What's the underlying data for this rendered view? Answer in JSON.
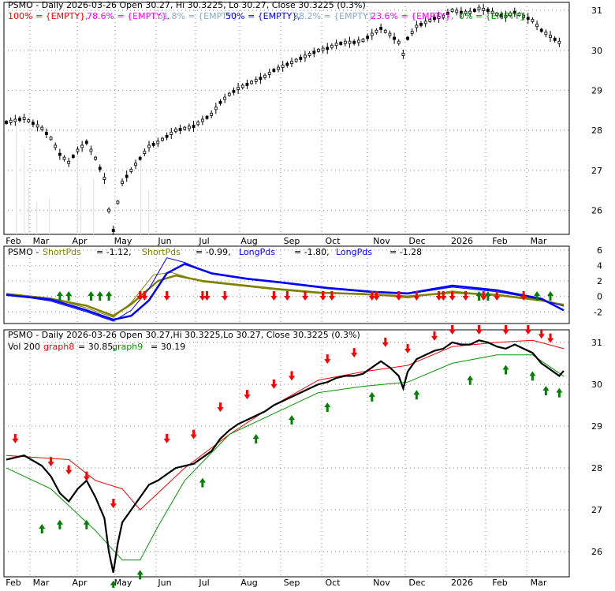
{
  "chart_data": [
    {
      "type": "candlestick",
      "panel": "price",
      "title": "PSMO - Daily 2026-03-26 Open 30.27, Hi 30.3225, Lo 30.27, Close 30.3225 (0.3%)",
      "fib_legend": [
        {
          "text": "100% = {EMPTY},",
          "color": "#ff0000"
        },
        {
          "text": "78.6% = {EMPTY},",
          "color": "#ff00ff"
        },
        {
          "text": "61.8% = {EMPTY},",
          "color": "#87a9c8"
        },
        {
          "text": "50% = {EMPTY},",
          "color": "#0000ff"
        },
        {
          "text": "38.2% = {EMPTY},",
          "color": "#87a9c8"
        },
        {
          "text": "23.6% = {EMPTY},",
          "color": "#ff00ff"
        },
        {
          "text": "0% = {EMPTY}",
          "color": "#009900"
        }
      ],
      "x_ticks": [
        "Feb",
        "Mar",
        "Apr",
        "May",
        "Jun",
        "Jul",
        "Aug",
        "Sep",
        "Oct",
        "Nov",
        "Dec",
        "2026",
        "Feb",
        "Mar"
      ],
      "y_ticks": [
        26,
        27,
        28,
        29,
        30,
        31
      ],
      "ylim": [
        25.4,
        31.2
      ],
      "series": [
        {
          "name": "PSMO",
          "points": [
            [
              0,
              28.2
            ],
            [
              4,
              28.3
            ],
            [
              8,
              28.05
            ],
            [
              10,
              27.8
            ],
            [
              12,
              27.4
            ],
            [
              14,
              27.2
            ],
            [
              16,
              27.5
            ],
            [
              18,
              27.7
            ],
            [
              20,
              27.3
            ],
            [
              22,
              26.8
            ],
            [
              23,
              26.0
            ],
            [
              24,
              25.5
            ],
            [
              25,
              26.2
            ],
            [
              26,
              26.7
            ],
            [
              28,
              27.0
            ],
            [
              30,
              27.3
            ],
            [
              32,
              27.6
            ],
            [
              34,
              27.7
            ],
            [
              36,
              27.85
            ],
            [
              38,
              28.0
            ],
            [
              40,
              28.05
            ],
            [
              42,
              28.1
            ],
            [
              44,
              28.25
            ],
            [
              46,
              28.4
            ],
            [
              48,
              28.7
            ],
            [
              50,
              28.9
            ],
            [
              52,
              29.05
            ],
            [
              54,
              29.15
            ],
            [
              56,
              29.25
            ],
            [
              58,
              29.35
            ],
            [
              60,
              29.5
            ],
            [
              62,
              29.6
            ],
            [
              64,
              29.7
            ],
            [
              66,
              29.8
            ],
            [
              68,
              29.9
            ],
            [
              70,
              30.0
            ],
            [
              72,
              30.05
            ],
            [
              74,
              30.15
            ],
            [
              76,
              30.2
            ],
            [
              78,
              30.2
            ],
            [
              80,
              30.25
            ],
            [
              82,
              30.4
            ],
            [
              84,
              30.55
            ],
            [
              86,
              30.4
            ],
            [
              88,
              30.2
            ],
            [
              89,
              29.9
            ],
            [
              90,
              30.3
            ],
            [
              92,
              30.6
            ],
            [
              94,
              30.7
            ],
            [
              96,
              30.8
            ],
            [
              98,
              30.85
            ],
            [
              100,
              31.0
            ],
            [
              102,
              30.95
            ],
            [
              104,
              30.95
            ],
            [
              106,
              31.05
            ],
            [
              108,
              31.0
            ],
            [
              110,
              30.9
            ],
            [
              112,
              30.85
            ],
            [
              114,
              30.95
            ],
            [
              116,
              30.85
            ],
            [
              118,
              30.75
            ],
            [
              120,
              30.5
            ],
            [
              122,
              30.35
            ],
            [
              124,
              30.2
            ],
            [
              125,
              30.32
            ]
          ]
        }
      ]
    },
    {
      "type": "line",
      "panel": "indicator",
      "legend": [
        {
          "text": "PSMO -",
          "color": "#000000"
        },
        {
          "text": "ShortPds",
          "color": "#808000"
        },
        {
          "text": "= -1.12,",
          "color": "#000000"
        },
        {
          "text": "ShortPds",
          "color": "#808000"
        },
        {
          "text": "= -0.99,",
          "color": "#000000"
        },
        {
          "text": "LongPds",
          "color": "#0000ff"
        },
        {
          "text": "= -1.80,",
          "color": "#000000"
        },
        {
          "text": "LongPds",
          "color": "#0000ff"
        },
        {
          "text": "= -1.28",
          "color": "#000000"
        }
      ],
      "y_ticks": [
        -2,
        0,
        2,
        4,
        6
      ],
      "ylim": [
        -3.5,
        6.5
      ],
      "series": [
        {
          "name": "ShortPds",
          "color": "#808000",
          "width": 2.5,
          "points": [
            [
              0,
              0.3
            ],
            [
              10,
              -0.3
            ],
            [
              18,
              -1.2
            ],
            [
              24,
              -2.5
            ],
            [
              28,
              -1.0
            ],
            [
              34,
              2.0
            ],
            [
              38,
              2.7
            ],
            [
              44,
              2.0
            ],
            [
              52,
              1.5
            ],
            [
              60,
              1.0
            ],
            [
              70,
              0.5
            ],
            [
              80,
              0.3
            ],
            [
              90,
              0.0
            ],
            [
              100,
              0.5
            ],
            [
              110,
              0.2
            ],
            [
              120,
              -0.5
            ],
            [
              125,
              -1.12
            ]
          ]
        },
        {
          "name": "ShortPds",
          "color": "#808000",
          "width": 1,
          "points": [
            [
              0,
              0.4
            ],
            [
              10,
              -0.2
            ],
            [
              18,
              -1.5
            ],
            [
              24,
              -2.7
            ],
            [
              28,
              -0.8
            ],
            [
              33,
              2.8
            ],
            [
              37,
              3.1
            ],
            [
              44,
              1.9
            ],
            [
              52,
              1.4
            ],
            [
              60,
              0.9
            ],
            [
              70,
              0.4
            ],
            [
              80,
              0.4
            ],
            [
              90,
              -0.2
            ],
            [
              100,
              0.7
            ],
            [
              110,
              0.1
            ],
            [
              120,
              -0.6
            ],
            [
              125,
              -0.99
            ]
          ]
        },
        {
          "name": "LongPds",
          "color": "#0000ff",
          "width": 2.5,
          "points": [
            [
              0,
              0.2
            ],
            [
              10,
              -0.4
            ],
            [
              18,
              -1.8
            ],
            [
              24,
              -3.0
            ],
            [
              28,
              -2.5
            ],
            [
              32,
              -0.5
            ],
            [
              36,
              3.0
            ],
            [
              40,
              4.2
            ],
            [
              46,
              3.0
            ],
            [
              54,
              2.3
            ],
            [
              62,
              1.8
            ],
            [
              72,
              1.1
            ],
            [
              82,
              0.6
            ],
            [
              90,
              0.4
            ],
            [
              100,
              1.4
            ],
            [
              110,
              0.8
            ],
            [
              120,
              -0.3
            ],
            [
              125,
              -1.8
            ]
          ]
        },
        {
          "name": "LongPds",
          "color": "#0000ff",
          "width": 1,
          "points": [
            [
              0,
              0.3
            ],
            [
              10,
              -0.6
            ],
            [
              18,
              -2.0
            ],
            [
              24,
              -3.2
            ],
            [
              28,
              -1.8
            ],
            [
              32,
              1.0
            ],
            [
              36,
              5.0
            ],
            [
              40,
              4.4
            ],
            [
              46,
              2.9
            ],
            [
              54,
              2.2
            ],
            [
              62,
              1.7
            ],
            [
              72,
              1.0
            ],
            [
              82,
              0.5
            ],
            [
              90,
              0.3
            ],
            [
              100,
              1.2
            ],
            [
              110,
              0.6
            ],
            [
              120,
              -0.4
            ],
            [
              125,
              -1.28
            ]
          ]
        }
      ]
    },
    {
      "type": "line",
      "panel": "price-lower",
      "title": "PSMO - Daily 2026-03-26 Open 30.27,Hi 30.3225,Lo 30.27, Close 30.3225 (0.3%)",
      "legend": [
        {
          "text": "Vol 200",
          "color": "#000000"
        },
        {
          "text": "graph8",
          "color": "#ff0000"
        },
        {
          "text": "= 30.85,",
          "color": "#000000"
        },
        {
          "text": "graph9",
          "color": "#009900"
        },
        {
          "text": "= 30.19",
          "color": "#000000"
        }
      ],
      "x_ticks": [
        "Feb",
        "Mar",
        "Apr",
        "May",
        "Jun",
        "Jul",
        "Aug",
        "Sep",
        "Oct",
        "Nov",
        "Dec",
        "2026",
        "Feb",
        "Mar"
      ],
      "y_ticks": [
        26,
        27,
        28,
        29,
        30,
        31
      ],
      "ylim": [
        25.4,
        31.3
      ],
      "series": [
        {
          "name": "graph8",
          "color": "#ff0000",
          "points": [
            [
              0,
              28.3
            ],
            [
              14,
              28.2
            ],
            [
              20,
              27.7
            ],
            [
              26,
              27.5
            ],
            [
              30,
              27.0
            ],
            [
              34,
              27.4
            ],
            [
              40,
              28.0
            ],
            [
              50,
              28.8
            ],
            [
              60,
              29.5
            ],
            [
              70,
              30.1
            ],
            [
              80,
              30.3
            ],
            [
              90,
              30.45
            ],
            [
              100,
              30.9
            ],
            [
              110,
              31.0
            ],
            [
              118,
              31.05
            ],
            [
              125,
              30.85
            ]
          ]
        },
        {
          "name": "graph9",
          "color": "#009900",
          "points": [
            [
              0,
              28.0
            ],
            [
              10,
              27.5
            ],
            [
              20,
              26.5
            ],
            [
              26,
              25.8
            ],
            [
              30,
              25.8
            ],
            [
              34,
              26.6
            ],
            [
              40,
              27.7
            ],
            [
              50,
              28.8
            ],
            [
              60,
              29.3
            ],
            [
              70,
              29.8
            ],
            [
              80,
              29.95
            ],
            [
              90,
              30.05
            ],
            [
              100,
              30.5
            ],
            [
              110,
              30.7
            ],
            [
              118,
              30.7
            ],
            [
              125,
              30.19
            ]
          ]
        },
        {
          "name": "PSMO",
          "color": "#000000",
          "points": [
            [
              0,
              28.2
            ],
            [
              4,
              28.3
            ],
            [
              8,
              28.05
            ],
            [
              10,
              27.8
            ],
            [
              12,
              27.4
            ],
            [
              14,
              27.2
            ],
            [
              16,
              27.5
            ],
            [
              18,
              27.7
            ],
            [
              20,
              27.3
            ],
            [
              22,
              26.8
            ],
            [
              23,
              26.0
            ],
            [
              24,
              25.5
            ],
            [
              25,
              26.2
            ],
            [
              26,
              26.7
            ],
            [
              28,
              27.0
            ],
            [
              30,
              27.3
            ],
            [
              32,
              27.6
            ],
            [
              34,
              27.7
            ],
            [
              36,
              27.85
            ],
            [
              38,
              28.0
            ],
            [
              40,
              28.05
            ],
            [
              42,
              28.1
            ],
            [
              44,
              28.25
            ],
            [
              46,
              28.4
            ],
            [
              48,
              28.7
            ],
            [
              50,
              28.9
            ],
            [
              52,
              29.05
            ],
            [
              54,
              29.15
            ],
            [
              56,
              29.25
            ],
            [
              58,
              29.35
            ],
            [
              60,
              29.5
            ],
            [
              62,
              29.6
            ],
            [
              64,
              29.7
            ],
            [
              66,
              29.8
            ],
            [
              68,
              29.9
            ],
            [
              70,
              30.0
            ],
            [
              72,
              30.05
            ],
            [
              74,
              30.15
            ],
            [
              76,
              30.2
            ],
            [
              78,
              30.2
            ],
            [
              80,
              30.25
            ],
            [
              82,
              30.4
            ],
            [
              84,
              30.55
            ],
            [
              86,
              30.4
            ],
            [
              88,
              30.2
            ],
            [
              89,
              29.9
            ],
            [
              90,
              30.3
            ],
            [
              92,
              30.6
            ],
            [
              94,
              30.7
            ],
            [
              96,
              30.8
            ],
            [
              98,
              30.85
            ],
            [
              100,
              31.0
            ],
            [
              102,
              30.95
            ],
            [
              104,
              30.95
            ],
            [
              106,
              31.05
            ],
            [
              108,
              31.0
            ],
            [
              110,
              30.9
            ],
            [
              112,
              30.85
            ],
            [
              114,
              30.95
            ],
            [
              116,
              30.85
            ],
            [
              118,
              30.75
            ],
            [
              120,
              30.5
            ],
            [
              122,
              30.35
            ],
            [
              124,
              30.2
            ],
            [
              125,
              30.32
            ]
          ]
        }
      ]
    }
  ],
  "colors": {
    "grid_dots": "#a0a0a0",
    "axis_bg": "#ffffff",
    "up_arrow": "#008000",
    "down_arrow": "#ff0000"
  },
  "icons": {
    "buy_signal": "up-arrow-icon",
    "sell_signal": "down-arrow-icon"
  }
}
